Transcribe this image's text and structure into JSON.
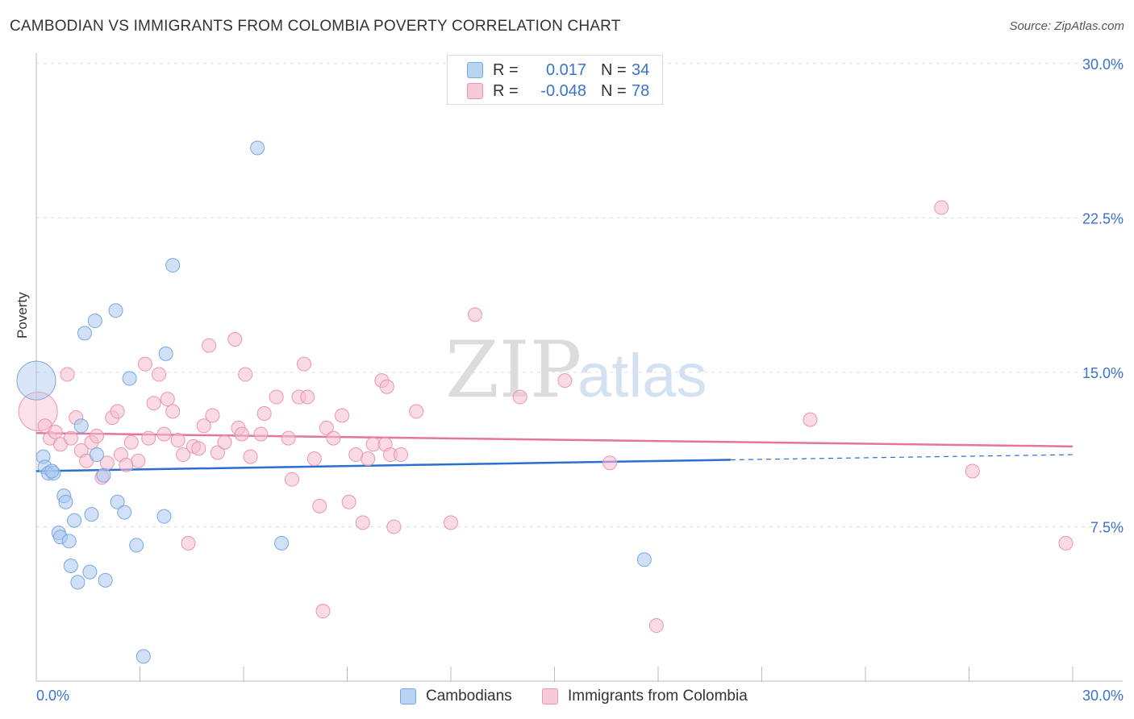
{
  "header": {
    "title": "CAMBODIAN VS IMMIGRANTS FROM COLOMBIA POVERTY CORRELATION CHART",
    "source": "Source: ZipAtlas.com"
  },
  "legend": {
    "rows": [
      {
        "r_label": "R =",
        "r_value": "0.017",
        "n_label": "N =",
        "n_value": "34"
      },
      {
        "r_label": "R =",
        "r_value": "-0.048",
        "n_label": "N =",
        "n_value": "78"
      }
    ]
  },
  "bottom_legend": {
    "series1": "Cambodians",
    "series2": "Immigrants from Colombia"
  },
  "watermark": {
    "zip": "ZIP",
    "atlas": "atlas"
  },
  "colors": {
    "blue_fill": "#aac8f0",
    "blue_stroke": "#7aa7e0",
    "blue_line": "#2b6fcf",
    "pink_fill": "#f6bdd0",
    "pink_stroke": "#e994b2",
    "pink_line": "#e5759c",
    "axis_text": "#3a73c9"
  },
  "chart_data": {
    "type": "scatter",
    "title": "CAMBODIAN VS IMMIGRANTS FROM COLOMBIA POVERTY CORRELATION CHART",
    "xlabel": "",
    "ylabel": "Poverty",
    "xlim": [
      0,
      30
    ],
    "ylim": [
      0,
      30.5
    ],
    "x_tick_labels": [
      "0.0%",
      "30.0%"
    ],
    "y_ticks": [
      7.5,
      15.0,
      22.5,
      30.0
    ],
    "y_tick_labels": [
      "7.5%",
      "15.0%",
      "22.5%",
      "30.0%"
    ],
    "series": [
      {
        "name": "Cambodians",
        "r": 0.017,
        "n": 34,
        "trend": {
          "x0": 0,
          "y0": 10.2,
          "x1": 20.1,
          "y1": 10.75,
          "dash_x1": 30,
          "dash_y1": 11.0
        },
        "points": [
          {
            "x": 0.0,
            "y": 14.6,
            "big": true
          },
          {
            "x": 0.2,
            "y": 10.9
          },
          {
            "x": 0.25,
            "y": 10.4
          },
          {
            "x": 0.35,
            "y": 10.1
          },
          {
            "x": 0.5,
            "y": 10.1
          },
          {
            "x": 0.45,
            "y": 10.2
          },
          {
            "x": 0.65,
            "y": 7.2
          },
          {
            "x": 0.7,
            "y": 7.0
          },
          {
            "x": 0.8,
            "y": 9.0
          },
          {
            "x": 0.85,
            "y": 8.7
          },
          {
            "x": 0.95,
            "y": 6.8
          },
          {
            "x": 1.0,
            "y": 5.6
          },
          {
            "x": 1.1,
            "y": 7.8
          },
          {
            "x": 1.2,
            "y": 4.8
          },
          {
            "x": 1.3,
            "y": 12.4
          },
          {
            "x": 1.4,
            "y": 16.9
          },
          {
            "x": 1.55,
            "y": 5.3
          },
          {
            "x": 1.6,
            "y": 8.1
          },
          {
            "x": 1.7,
            "y": 17.5
          },
          {
            "x": 1.75,
            "y": 11.0
          },
          {
            "x": 1.95,
            "y": 10.0
          },
          {
            "x": 2.0,
            "y": 4.9
          },
          {
            "x": 2.3,
            "y": 18.0
          },
          {
            "x": 2.35,
            "y": 8.7
          },
          {
            "x": 2.55,
            "y": 8.2
          },
          {
            "x": 2.7,
            "y": 14.7
          },
          {
            "x": 2.9,
            "y": 6.6
          },
          {
            "x": 3.1,
            "y": 1.2
          },
          {
            "x": 3.7,
            "y": 8.0
          },
          {
            "x": 3.75,
            "y": 15.9
          },
          {
            "x": 3.95,
            "y": 20.2
          },
          {
            "x": 6.4,
            "y": 25.9
          },
          {
            "x": 7.1,
            "y": 6.7
          },
          {
            "x": 17.6,
            "y": 5.9
          }
        ]
      },
      {
        "name": "Immigrants from Colombia",
        "r": -0.048,
        "n": 78,
        "trend": {
          "x0": 0,
          "y0": 12.05,
          "x1": 30,
          "y1": 11.4
        },
        "points": [
          {
            "x": 0.05,
            "y": 13.1,
            "big": true
          },
          {
            "x": 0.25,
            "y": 12.4
          },
          {
            "x": 0.4,
            "y": 11.8
          },
          {
            "x": 0.55,
            "y": 12.1
          },
          {
            "x": 0.7,
            "y": 11.5
          },
          {
            "x": 0.9,
            "y": 14.9
          },
          {
            "x": 1.0,
            "y": 11.8
          },
          {
            "x": 1.15,
            "y": 12.8
          },
          {
            "x": 1.3,
            "y": 11.2
          },
          {
            "x": 1.45,
            "y": 10.7
          },
          {
            "x": 1.6,
            "y": 11.6
          },
          {
            "x": 1.75,
            "y": 11.9
          },
          {
            "x": 1.9,
            "y": 9.9
          },
          {
            "x": 2.05,
            "y": 10.6
          },
          {
            "x": 2.2,
            "y": 12.8
          },
          {
            "x": 2.35,
            "y": 13.1
          },
          {
            "x": 2.45,
            "y": 11.0
          },
          {
            "x": 2.6,
            "y": 10.5
          },
          {
            "x": 2.75,
            "y": 11.6
          },
          {
            "x": 2.95,
            "y": 10.7
          },
          {
            "x": 3.15,
            "y": 15.4
          },
          {
            "x": 3.25,
            "y": 11.8
          },
          {
            "x": 3.4,
            "y": 13.5
          },
          {
            "x": 3.55,
            "y": 14.9
          },
          {
            "x": 3.7,
            "y": 12.0
          },
          {
            "x": 3.8,
            "y": 13.7
          },
          {
            "x": 3.95,
            "y": 13.1
          },
          {
            "x": 4.1,
            "y": 11.7
          },
          {
            "x": 4.25,
            "y": 11.0
          },
          {
            "x": 4.4,
            "y": 6.7
          },
          {
            "x": 4.55,
            "y": 11.4
          },
          {
            "x": 4.7,
            "y": 11.3
          },
          {
            "x": 4.85,
            "y": 12.4
          },
          {
            "x": 5.0,
            "y": 16.3
          },
          {
            "x": 5.1,
            "y": 12.9
          },
          {
            "x": 5.25,
            "y": 11.1
          },
          {
            "x": 5.45,
            "y": 11.6
          },
          {
            "x": 5.75,
            "y": 16.6
          },
          {
            "x": 5.85,
            "y": 12.3
          },
          {
            "x": 5.95,
            "y": 12.0
          },
          {
            "x": 6.05,
            "y": 14.9
          },
          {
            "x": 6.2,
            "y": 10.9
          },
          {
            "x": 6.5,
            "y": 12.0
          },
          {
            "x": 6.6,
            "y": 13.0
          },
          {
            "x": 6.95,
            "y": 13.8
          },
          {
            "x": 7.3,
            "y": 11.8
          },
          {
            "x": 7.4,
            "y": 9.8
          },
          {
            "x": 7.6,
            "y": 13.8
          },
          {
            "x": 7.75,
            "y": 15.4
          },
          {
            "x": 7.85,
            "y": 13.8
          },
          {
            "x": 8.05,
            "y": 10.8
          },
          {
            "x": 8.2,
            "y": 8.5
          },
          {
            "x": 8.3,
            "y": 3.4
          },
          {
            "x": 8.4,
            "y": 12.3
          },
          {
            "x": 8.6,
            "y": 11.8
          },
          {
            "x": 8.85,
            "y": 12.9
          },
          {
            "x": 9.05,
            "y": 8.7
          },
          {
            "x": 9.25,
            "y": 11.0
          },
          {
            "x": 9.45,
            "y": 7.7
          },
          {
            "x": 9.6,
            "y": 10.8
          },
          {
            "x": 9.75,
            "y": 11.5
          },
          {
            "x": 10.1,
            "y": 11.5
          },
          {
            "x": 10.0,
            "y": 14.6
          },
          {
            "x": 10.15,
            "y": 14.3
          },
          {
            "x": 10.25,
            "y": 11.0
          },
          {
            "x": 10.35,
            "y": 7.5
          },
          {
            "x": 10.55,
            "y": 11.0
          },
          {
            "x": 11.0,
            "y": 13.1
          },
          {
            "x": 12.0,
            "y": 7.7
          },
          {
            "x": 12.7,
            "y": 17.8
          },
          {
            "x": 14.0,
            "y": 13.8
          },
          {
            "x": 15.3,
            "y": 14.6
          },
          {
            "x": 16.6,
            "y": 10.6
          },
          {
            "x": 17.95,
            "y": 2.7
          },
          {
            "x": 22.4,
            "y": 12.7
          },
          {
            "x": 26.2,
            "y": 23.0
          },
          {
            "x": 27.1,
            "y": 10.2
          },
          {
            "x": 29.8,
            "y": 6.7
          }
        ]
      }
    ]
  }
}
